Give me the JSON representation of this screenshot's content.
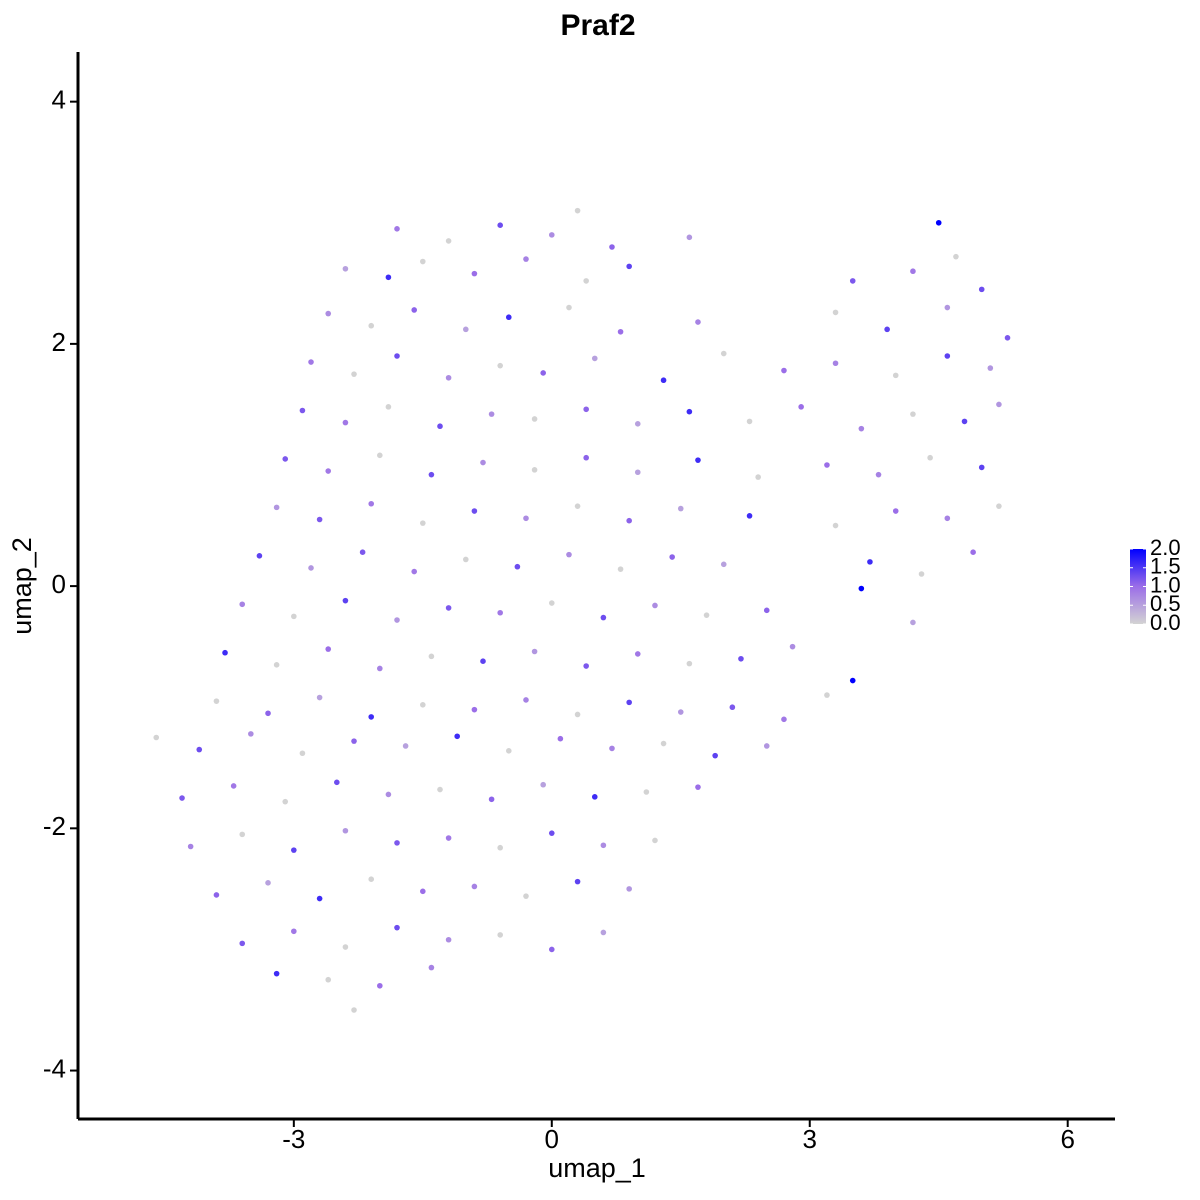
{
  "chart_data": {
    "type": "scatter",
    "title": "Praf2",
    "x_label": "umap_1",
    "y_label": "umap_2",
    "xlim": [
      -5.51,
      6.55
    ],
    "ylim": [
      -4.4,
      4.41
    ],
    "xticks": [
      -3,
      0,
      3,
      6
    ],
    "yticks": [
      -4,
      -2,
      0,
      2,
      4
    ],
    "colorscale": [
      "#d3d3d3",
      "#9b6ee8",
      "#0000ff"
    ],
    "colorlim": [
      0,
      2
    ],
    "colorticks": [
      {
        "value": 0,
        "label": "0.0"
      },
      {
        "value": 0.5,
        "label": "0.5"
      },
      {
        "value": 1,
        "label": "1.0"
      },
      {
        "value": 1.5,
        "label": "1.5"
      },
      {
        "value": 2,
        "label": "2.0"
      }
    ],
    "x": [
      -1.8,
      -1.2,
      -0.6,
      0.0,
      0.3,
      0.7,
      4.5,
      -2.4,
      -1.9,
      -1.5,
      -0.9,
      -0.3,
      0.4,
      0.9,
      1.6,
      3.5,
      4.2,
      4.7,
      5.0,
      -2.6,
      -2.1,
      -1.6,
      -1.0,
      -0.5,
      0.2,
      0.8,
      1.7,
      3.3,
      3.9,
      4.6,
      5.3,
      -2.8,
      -2.3,
      -1.8,
      -1.2,
      -0.6,
      -0.1,
      0.5,
      1.3,
      2.0,
      2.7,
      3.3,
      4.0,
      4.6,
      5.1,
      -2.9,
      -2.4,
      -1.9,
      -1.3,
      -0.7,
      -0.2,
      0.4,
      1.0,
      1.6,
      2.3,
      2.9,
      3.6,
      4.2,
      4.8,
      5.2,
      -3.1,
      -2.6,
      -2.0,
      -1.4,
      -0.8,
      -0.2,
      0.4,
      1.0,
      1.7,
      2.4,
      3.2,
      3.8,
      4.4,
      5.0,
      -3.2,
      -2.7,
      -2.1,
      -1.5,
      -0.9,
      -0.3,
      0.3,
      0.9,
      1.5,
      2.3,
      3.3,
      4.0,
      4.6,
      5.2,
      -3.4,
      -2.8,
      -2.2,
      -1.6,
      -1.0,
      -0.4,
      0.2,
      0.8,
      1.4,
      2.0,
      3.7,
      4.3,
      4.9,
      -3.6,
      -3.0,
      -2.4,
      -1.8,
      -1.2,
      -0.6,
      0.0,
      0.6,
      1.2,
      1.8,
      2.5,
      3.6,
      4.2,
      -3.8,
      -3.2,
      -2.6,
      -2.0,
      -1.4,
      -0.8,
      -0.2,
      0.4,
      1.0,
      1.6,
      2.2,
      2.8,
      3.5,
      -3.9,
      -3.3,
      -2.7,
      -2.1,
      -1.5,
      -0.9,
      -0.3,
      0.3,
      0.9,
      1.5,
      2.1,
      2.7,
      3.2,
      -4.6,
      -4.1,
      -3.5,
      -2.9,
      -2.3,
      -1.7,
      -1.1,
      -0.5,
      0.1,
      0.7,
      1.3,
      1.9,
      2.5,
      -4.3,
      -3.7,
      -3.1,
      -2.5,
      -1.9,
      -1.3,
      -0.7,
      -0.1,
      0.5,
      1.1,
      1.7,
      -4.2,
      -3.6,
      -3.0,
      -2.4,
      -1.8,
      -1.2,
      -0.6,
      0.0,
      0.6,
      1.2,
      -3.9,
      -3.3,
      -2.7,
      -2.1,
      -1.5,
      -0.9,
      -0.3,
      0.3,
      0.9,
      -3.6,
      -3.0,
      -2.4,
      -1.8,
      -1.2,
      -0.6,
      0.0,
      0.6,
      -3.2,
      -2.6,
      -2.0,
      -1.4,
      -2.3
    ],
    "y": [
      2.95,
      2.85,
      2.98,
      2.9,
      3.1,
      2.8,
      3.0,
      2.62,
      2.55,
      2.68,
      2.58,
      2.7,
      2.52,
      2.64,
      2.88,
      2.52,
      2.6,
      2.72,
      2.45,
      2.25,
      2.15,
      2.28,
      2.12,
      2.22,
      2.3,
      2.1,
      2.18,
      2.26,
      2.12,
      2.3,
      2.05,
      1.85,
      1.75,
      1.9,
      1.72,
      1.82,
      1.76,
      1.88,
      1.7,
      1.92,
      1.78,
      1.84,
      1.74,
      1.9,
      1.8,
      1.45,
      1.35,
      1.48,
      1.32,
      1.42,
      1.38,
      1.46,
      1.34,
      1.44,
      1.36,
      1.48,
      1.3,
      1.42,
      1.36,
      1.5,
      1.05,
      0.95,
      1.08,
      0.92,
      1.02,
      0.96,
      1.06,
      0.94,
      1.04,
      0.9,
      1.0,
      0.92,
      1.06,
      0.98,
      0.65,
      0.55,
      0.68,
      0.52,
      0.62,
      0.56,
      0.66,
      0.54,
      0.64,
      0.58,
      0.5,
      0.62,
      0.56,
      0.66,
      0.25,
      0.15,
      0.28,
      0.12,
      0.22,
      0.16,
      0.26,
      0.14,
      0.24,
      0.18,
      0.2,
      0.1,
      0.28,
      -0.15,
      -0.25,
      -0.12,
      -0.28,
      -0.18,
      -0.22,
      -0.14,
      -0.26,
      -0.16,
      -0.24,
      -0.2,
      -0.02,
      -0.3,
      -0.55,
      -0.65,
      -0.52,
      -0.68,
      -0.58,
      -0.62,
      -0.54,
      -0.66,
      -0.56,
      -0.64,
      -0.6,
      -0.5,
      -0.78,
      -0.95,
      -1.05,
      -0.92,
      -1.08,
      -0.98,
      -1.02,
      -0.94,
      -1.06,
      -0.96,
      -1.04,
      -1.0,
      -1.1,
      -0.9,
      -1.25,
      -1.35,
      -1.22,
      -1.38,
      -1.28,
      -1.32,
      -1.24,
      -1.36,
      -1.26,
      -1.34,
      -1.3,
      -1.4,
      -1.32,
      -1.75,
      -1.65,
      -1.78,
      -1.62,
      -1.72,
      -1.68,
      -1.76,
      -1.64,
      -1.74,
      -1.7,
      -1.66,
      -2.15,
      -2.05,
      -2.18,
      -2.02,
      -2.12,
      -2.08,
      -2.16,
      -2.04,
      -2.14,
      -2.1,
      -2.55,
      -2.45,
      -2.58,
      -2.42,
      -2.52,
      -2.48,
      -2.56,
      -2.44,
      -2.5,
      -2.95,
      -2.85,
      -2.98,
      -2.82,
      -2.92,
      -2.88,
      -3.0,
      -2.86,
      -3.2,
      -3.25,
      -3.3,
      -3.15,
      -3.5
    ],
    "values": [
      0.9,
      0,
      1.3,
      0.7,
      0,
      1.1,
      2.0,
      0.5,
      1.6,
      0,
      1.0,
      0.8,
      0,
      1.4,
      0.6,
      1.2,
      0.9,
      0,
      1.3,
      0.7,
      0,
      1.1,
      0.5,
      1.6,
      0,
      1.0,
      0.8,
      0,
      1.4,
      0.6,
      1.2,
      0.9,
      0,
      1.3,
      0.7,
      0,
      1.1,
      0.5,
      1.6,
      0,
      1.0,
      0.8,
      0,
      1.4,
      0.6,
      1.2,
      0.9,
      0,
      1.3,
      0.7,
      0,
      1.1,
      0.5,
      1.6,
      0,
      1.0,
      0.8,
      0,
      1.4,
      0.6,
      1.2,
      0.9,
      0,
      1.3,
      0.7,
      0,
      1.1,
      0.5,
      1.6,
      0,
      1.0,
      0.8,
      0,
      1.4,
      0.6,
      1.2,
      0.9,
      0,
      1.3,
      0.7,
      0,
      1.1,
      0.5,
      1.6,
      0,
      1.0,
      0.8,
      0,
      1.4,
      0.6,
      1.2,
      0.9,
      0,
      1.3,
      0.7,
      0,
      1.1,
      0.5,
      1.6,
      0,
      1.0,
      0.8,
      0,
      1.4,
      0.6,
      1.2,
      0.9,
      0,
      1.3,
      0.7,
      0,
      1.1,
      2.0,
      0.5,
      1.6,
      0,
      1.0,
      0.8,
      0,
      1.4,
      0.6,
      1.2,
      0.9,
      0,
      1.3,
      0.7,
      2.0,
      0,
      1.1,
      0.5,
      1.6,
      0,
      1.0,
      0.8,
      0,
      1.4,
      0.6,
      1.2,
      0.9,
      0,
      0,
      1.3,
      0.7,
      0,
      1.1,
      0.5,
      1.6,
      0,
      1.0,
      0.8,
      0,
      1.4,
      0.6,
      1.2,
      0.9,
      0,
      1.3,
      0.7,
      0,
      1.1,
      0.5,
      1.6,
      0,
      1.0,
      0.8,
      0,
      1.4,
      0.6,
      1.2,
      0.9,
      0,
      1.3,
      0.7,
      0,
      1.1,
      0.5,
      1.6,
      0,
      1.0,
      0.8,
      0,
      1.4,
      0.6,
      1.2,
      0.9,
      0,
      1.3,
      0.7,
      0,
      1.1,
      0.5,
      1.6,
      0,
      1.0,
      0.8,
      0
    ]
  }
}
